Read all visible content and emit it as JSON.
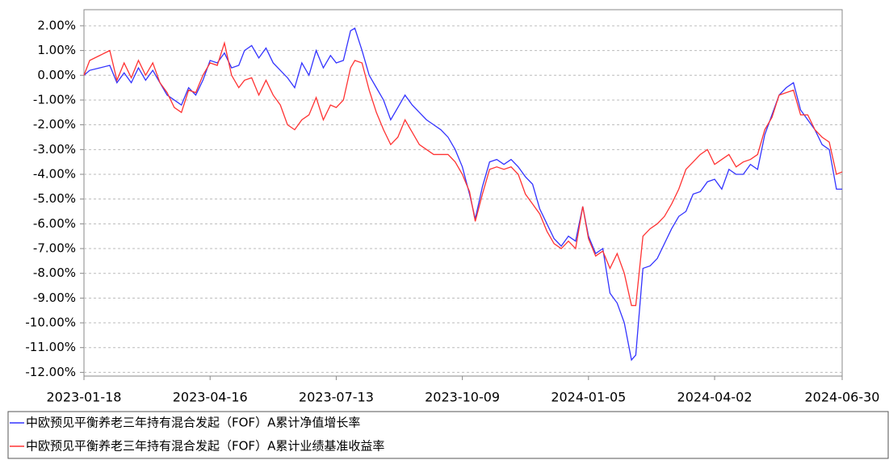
{
  "chart_data": {
    "type": "line",
    "x": [
      "2023-01-18",
      "2023-01-22",
      "2023-01-29",
      "2023-02-05",
      "2023-02-10",
      "2023-02-15",
      "2023-02-20",
      "2023-02-25",
      "2023-03-02",
      "2023-03-07",
      "2023-03-12",
      "2023-03-17",
      "2023-03-22",
      "2023-03-27",
      "2023-04-01",
      "2023-04-06",
      "2023-04-11",
      "2023-04-16",
      "2023-04-21",
      "2023-04-26",
      "2023-05-01",
      "2023-05-06",
      "2023-05-10",
      "2023-05-15",
      "2023-05-20",
      "2023-05-25",
      "2023-05-30",
      "2023-06-04",
      "2023-06-09",
      "2023-06-14",
      "2023-06-19",
      "2023-06-24",
      "2023-06-29",
      "2023-07-04",
      "2023-07-09",
      "2023-07-13",
      "2023-07-18",
      "2023-07-23",
      "2023-07-26",
      "2023-07-31",
      "2023-08-05",
      "2023-08-10",
      "2023-08-15",
      "2023-08-20",
      "2023-08-25",
      "2023-08-30",
      "2023-09-04",
      "2023-09-09",
      "2023-09-14",
      "2023-09-19",
      "2023-09-24",
      "2023-09-29",
      "2023-10-04",
      "2023-10-09",
      "2023-10-14",
      "2023-10-18",
      "2023-10-23",
      "2023-10-28",
      "2023-11-02",
      "2023-11-07",
      "2023-11-12",
      "2023-11-17",
      "2023-11-22",
      "2023-11-27",
      "2023-12-02",
      "2023-12-07",
      "2023-12-12",
      "2023-12-17",
      "2023-12-22",
      "2023-12-27",
      "2024-01-01",
      "2024-01-05",
      "2024-01-10",
      "2024-01-15",
      "2024-01-20",
      "2024-01-25",
      "2024-01-30",
      "2024-02-04",
      "2024-02-07",
      "2024-02-12",
      "2024-02-17",
      "2024-02-22",
      "2024-02-27",
      "2024-03-03",
      "2024-03-08",
      "2024-03-13",
      "2024-03-18",
      "2024-03-23",
      "2024-03-28",
      "2024-04-02",
      "2024-04-07",
      "2024-04-12",
      "2024-04-17",
      "2024-04-22",
      "2024-04-27",
      "2024-05-02",
      "2024-05-07",
      "2024-05-12",
      "2024-05-17",
      "2024-05-22",
      "2024-05-27",
      "2024-06-01",
      "2024-06-06",
      "2024-06-11",
      "2024-06-16",
      "2024-06-21",
      "2024-06-26",
      "2024-06-30"
    ],
    "series": [
      {
        "name": "中欧预见平衡养老三年持有混合发起（FOF）A累计净值增长率",
        "color": "#3333ff",
        "values": [
          0.0,
          0.2,
          0.3,
          0.4,
          -0.3,
          0.1,
          -0.3,
          0.3,
          -0.2,
          0.2,
          -0.3,
          -0.8,
          -1.0,
          -1.2,
          -0.5,
          -0.8,
          -0.2,
          0.6,
          0.5,
          0.9,
          0.3,
          0.4,
          1.0,
          1.2,
          0.7,
          1.1,
          0.5,
          0.2,
          -0.1,
          -0.5,
          0.5,
          0.0,
          1.0,
          0.3,
          0.8,
          0.5,
          0.6,
          1.8,
          1.9,
          1.0,
          0.0,
          -0.5,
          -1.0,
          -1.8,
          -1.3,
          -0.8,
          -1.2,
          -1.5,
          -1.8,
          -2.0,
          -2.2,
          -2.5,
          -3.0,
          -3.7,
          -4.8,
          -5.8,
          -4.5,
          -3.5,
          -3.4,
          -3.6,
          -3.4,
          -3.7,
          -4.1,
          -4.4,
          -5.4,
          -6.0,
          -6.6,
          -6.9,
          -6.5,
          -6.7,
          -5.3,
          -6.5,
          -7.2,
          -7.0,
          -8.8,
          -9.2,
          -10.0,
          -11.5,
          -11.3,
          -7.8,
          -7.7,
          -7.4,
          -6.8,
          -6.2,
          -5.7,
          -5.5,
          -4.8,
          -4.7,
          -4.3,
          -4.2,
          -4.6,
          -3.8,
          -4.0,
          -4.0,
          -3.6,
          -3.8,
          -2.4,
          -1.6,
          -0.8,
          -0.5,
          -0.3,
          -1.4,
          -1.8,
          -2.2,
          -2.8,
          -3.0,
          -4.6,
          -4.6
        ]
      },
      {
        "name": "中欧预见平衡养老三年持有混合发起（FOF）A累计业绩基准收益率",
        "color": "#ff3333",
        "values": [
          0.0,
          0.6,
          0.8,
          1.0,
          -0.2,
          0.5,
          -0.1,
          0.6,
          0.0,
          0.5,
          -0.3,
          -0.7,
          -1.3,
          -1.5,
          -0.6,
          -0.7,
          0.0,
          0.5,
          0.4,
          1.3,
          0.0,
          -0.5,
          -0.2,
          -0.1,
          -0.8,
          -0.2,
          -0.8,
          -1.2,
          -2.0,
          -2.2,
          -1.8,
          -1.6,
          -0.9,
          -1.8,
          -1.2,
          -1.3,
          -1.0,
          0.3,
          0.6,
          0.5,
          -0.6,
          -1.5,
          -2.2,
          -2.8,
          -2.5,
          -1.8,
          -2.3,
          -2.8,
          -3.0,
          -3.2,
          -3.2,
          -3.2,
          -3.5,
          -4.0,
          -4.7,
          -5.9,
          -4.8,
          -3.8,
          -3.7,
          -3.8,
          -3.7,
          -4.0,
          -4.8,
          -5.2,
          -5.6,
          -6.3,
          -6.8,
          -7.0,
          -6.7,
          -7.0,
          -5.3,
          -6.6,
          -7.3,
          -7.1,
          -7.8,
          -7.2,
          -8.0,
          -9.3,
          -9.3,
          -6.5,
          -6.2,
          -6.0,
          -5.7,
          -5.2,
          -4.6,
          -3.8,
          -3.5,
          -3.2,
          -3.0,
          -3.6,
          -3.4,
          -3.2,
          -3.7,
          -3.5,
          -3.4,
          -3.2,
          -2.2,
          -1.7,
          -0.8,
          -0.7,
          -0.6,
          -1.6,
          -1.6,
          -2.2,
          -2.5,
          -2.7,
          -4.0,
          -3.9
        ]
      }
    ],
    "xlim": [
      "2023-01-18",
      "2024-06-30"
    ],
    "xticks": [
      "2023-01-18",
      "2023-04-16",
      "2023-07-13",
      "2023-10-09",
      "2024-01-05",
      "2024-04-02",
      "2024-06-30"
    ],
    "ylim": [
      -12.15,
      2.65
    ],
    "yticks": [
      {
        "value": 2,
        "label": "2.00%"
      },
      {
        "value": 1,
        "label": "1.00%"
      },
      {
        "value": 0,
        "label": "0.00%"
      },
      {
        "value": -1,
        "label": "-1.00%"
      },
      {
        "value": -2,
        "label": "-2.00%"
      },
      {
        "value": -3,
        "label": "-3.00%"
      },
      {
        "value": -4,
        "label": "-4.00%"
      },
      {
        "value": -5,
        "label": "-5.00%"
      },
      {
        "value": -6,
        "label": "-6.00%"
      },
      {
        "value": -7,
        "label": "-7.00%"
      },
      {
        "value": -8,
        "label": "-8.00%"
      },
      {
        "value": -9,
        "label": "-9.00%"
      },
      {
        "value": -10,
        "label": "-10.00%"
      },
      {
        "value": -11,
        "label": "-11.00%"
      },
      {
        "value": -12,
        "label": "-12.00%"
      }
    ],
    "grid": true
  }
}
